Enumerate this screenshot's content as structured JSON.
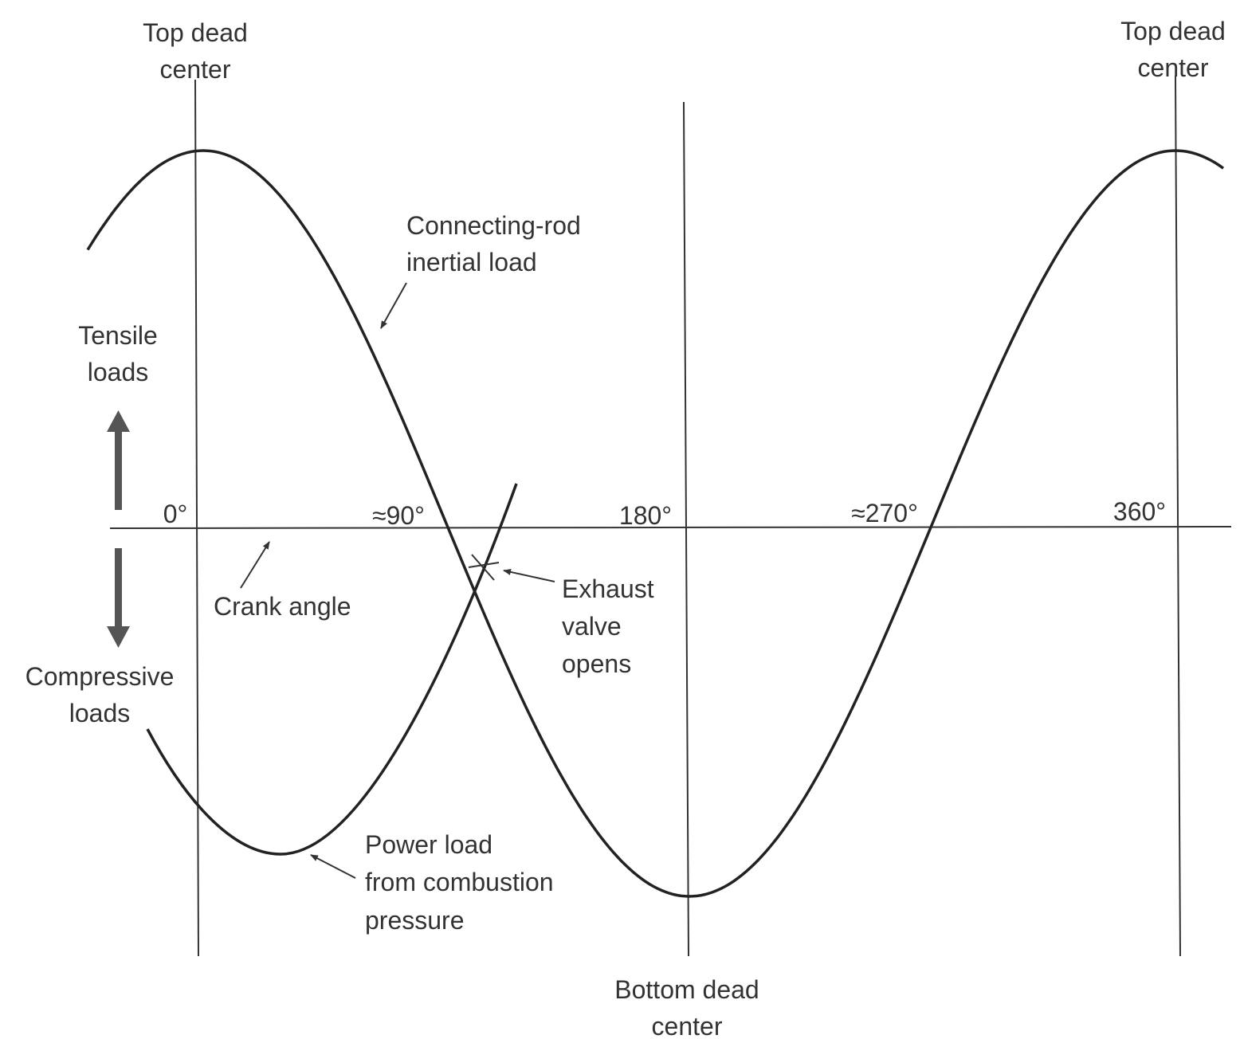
{
  "dead_centers": [
    {
      "label": [
        "Top dead",
        "center"
      ]
    },
    {
      "label": [
        "Bottom dead",
        "center"
      ]
    },
    {
      "label": [
        "Top dead",
        "center"
      ]
    }
  ],
  "angle_labels": [
    "0°",
    "≈90°",
    "180°",
    "≈270°",
    "360°"
  ],
  "axis_label": "Crank angle",
  "load_directions": {
    "tensile": [
      "Tensile",
      "loads"
    ],
    "compressive": [
      "Compressive",
      "loads"
    ]
  },
  "curves": [
    {
      "label": [
        "Connecting-rod",
        "inertial load"
      ]
    },
    {
      "label": [
        "Power load",
        "from combustion",
        "pressure"
      ]
    }
  ],
  "event": {
    "label": [
      "Exhaust",
      "valve",
      "opens"
    ]
  }
}
